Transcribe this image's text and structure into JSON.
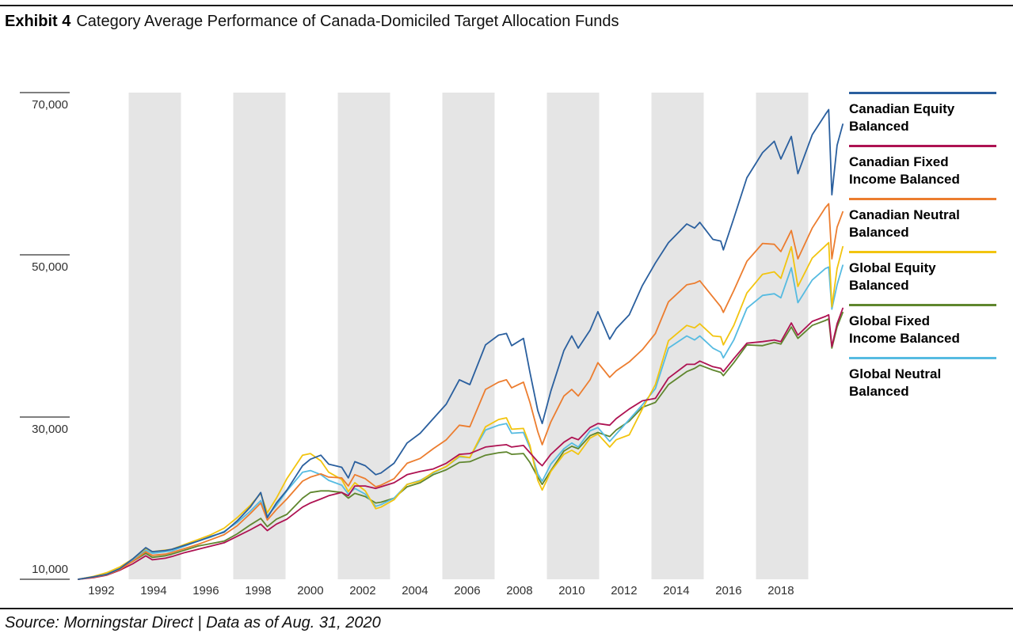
{
  "header": {
    "exhibit_label": "Exhibit 4",
    "title": "Category Average Performance of Canada-Domiciled Target Allocation Funds"
  },
  "footer": {
    "source": "Source: Morningstar Direct | Data as of Aug. 31, 2020"
  },
  "colors": {
    "band_gray": "#E5E5E5",
    "tick_gray": "#7F7F7F",
    "rule_black": "#1A1A1A"
  },
  "chart_data": {
    "type": "line",
    "title": "Category Average Performance of Canada-Domiciled Target Allocation Funds",
    "xlabel": "",
    "ylabel": "",
    "y_axis": {
      "ticks": [
        10000,
        30000,
        50000,
        70000
      ],
      "tick_labels": [
        "10,000",
        "30,000",
        "50,000",
        "70,000"
      ],
      "min": 10000,
      "max": 70000
    },
    "x_axis": {
      "tick_years": [
        1992,
        1994,
        1996,
        1998,
        2000,
        2002,
        2004,
        2006,
        2008,
        2010,
        2012,
        2014,
        2016,
        2018
      ],
      "start": 1991.42,
      "end": 2020.67
    },
    "shaded_bands": [
      [
        1993.35,
        1995.35
      ],
      [
        1997.35,
        1999.35
      ],
      [
        2001.35,
        2003.35
      ],
      [
        2005.35,
        2007.35
      ],
      [
        2009.35,
        2011.35
      ],
      [
        2013.35,
        2015.35
      ],
      [
        2017.35,
        2019.35
      ]
    ],
    "legend_position": "right",
    "grid": false,
    "x": [
      1991.42,
      1992.0,
      1992.5,
      1993.0,
      1993.5,
      1994.0,
      1994.25,
      1994.75,
      1995.0,
      1995.5,
      1996.0,
      1996.5,
      1997.0,
      1997.5,
      1998.0,
      1998.4,
      1998.65,
      1999.0,
      1999.4,
      2000.0,
      2000.3,
      2000.7,
      2001.0,
      2001.5,
      2001.75,
      2002.0,
      2002.4,
      2002.8,
      2003.0,
      2003.5,
      2004.0,
      2004.5,
      2005.0,
      2005.5,
      2006.0,
      2006.4,
      2007.0,
      2007.5,
      2007.8,
      2008.0,
      2008.45,
      2008.7,
      2009.0,
      2009.17,
      2009.5,
      2010.0,
      2010.3,
      2010.55,
      2011.0,
      2011.3,
      2011.75,
      2012.0,
      2012.5,
      2013.0,
      2013.5,
      2014.0,
      2014.7,
      2015.0,
      2015.2,
      2015.7,
      2016.0,
      2016.1,
      2016.5,
      2017.0,
      2017.6,
      2018.05,
      2018.3,
      2018.7,
      2018.95,
      2019.5,
      2020.0,
      2020.13,
      2020.25,
      2020.45,
      2020.67
    ],
    "series": [
      {
        "name": "Canadian Equity Balanced",
        "color": "#2A5F9E",
        "values": [
          10000,
          10300,
          10600,
          11300,
          12500,
          13900,
          13400,
          13550,
          13700,
          14200,
          14700,
          15300,
          15800,
          17200,
          18900,
          20700,
          17600,
          19400,
          21000,
          24000,
          24800,
          25300,
          24200,
          23800,
          22500,
          24500,
          24000,
          22900,
          23100,
          24300,
          26800,
          28000,
          29800,
          31600,
          34600,
          34000,
          38900,
          40100,
          40300,
          38800,
          39700,
          35500,
          30800,
          29200,
          33200,
          38200,
          40000,
          38500,
          40700,
          43000,
          39600,
          40900,
          42600,
          46200,
          49000,
          51500,
          53800,
          53300,
          54000,
          51900,
          51700,
          50600,
          54500,
          59500,
          62600,
          64000,
          61800,
          64600,
          60000,
          64800,
          67300,
          67900,
          57400,
          63500,
          66100
        ]
      },
      {
        "name": "Canadian Fixed Income Balanced",
        "color": "#AE1252",
        "values": [
          10000,
          10200,
          10500,
          11100,
          11900,
          12900,
          12400,
          12600,
          12800,
          13300,
          13700,
          14100,
          14500,
          15300,
          16100,
          16800,
          16000,
          16800,
          17400,
          18900,
          19400,
          19900,
          20300,
          20700,
          20300,
          21500,
          21500,
          21200,
          21400,
          21900,
          22900,
          23300,
          23600,
          24300,
          25400,
          25500,
          26300,
          26500,
          26600,
          26300,
          26500,
          25600,
          24500,
          24000,
          25400,
          26900,
          27500,
          27200,
          28700,
          29200,
          29000,
          29800,
          31000,
          32000,
          32300,
          34800,
          36500,
          36500,
          36900,
          36200,
          36000,
          35600,
          37200,
          39100,
          39300,
          39500,
          39300,
          41600,
          40100,
          41800,
          42400,
          42600,
          38700,
          41500,
          43400
        ]
      },
      {
        "name": "Canadian Neutral Balanced",
        "color": "#EC7D2F",
        "values": [
          10000,
          10250,
          10550,
          11200,
          12200,
          13400,
          12950,
          13100,
          13300,
          13800,
          14300,
          14900,
          15500,
          16600,
          18100,
          19400,
          17300,
          18600,
          19900,
          22100,
          22600,
          23000,
          22600,
          22500,
          21500,
          22900,
          22400,
          21400,
          21600,
          22400,
          24300,
          24900,
          26100,
          27200,
          29000,
          28800,
          33400,
          34300,
          34600,
          33600,
          34300,
          31800,
          28200,
          26600,
          29400,
          32600,
          33400,
          32600,
          34600,
          36700,
          34900,
          35700,
          36800,
          38300,
          40300,
          44200,
          46300,
          46500,
          46800,
          44800,
          43600,
          42900,
          45600,
          49200,
          51400,
          51300,
          50400,
          53000,
          49500,
          53300,
          55800,
          56300,
          49500,
          53400,
          55300
        ]
      },
      {
        "name": "Global Equity Balanced",
        "color": "#F2C40F",
        "values": [
          10000,
          10350,
          10800,
          11500,
          12500,
          13800,
          13400,
          13600,
          13700,
          14300,
          14900,
          15500,
          16300,
          17600,
          19100,
          20600,
          18200,
          20000,
          22400,
          25300,
          25500,
          24600,
          23200,
          22300,
          20800,
          21900,
          20900,
          18700,
          18900,
          19800,
          21700,
          22100,
          23200,
          23900,
          25200,
          25000,
          28800,
          29700,
          29900,
          28500,
          28600,
          26500,
          22200,
          21000,
          23300,
          25400,
          25900,
          25400,
          27400,
          27900,
          26300,
          27200,
          27800,
          31000,
          34000,
          39400,
          41300,
          41000,
          41500,
          40000,
          39900,
          38900,
          41300,
          45300,
          47600,
          47900,
          47100,
          51000,
          46100,
          49600,
          51100,
          51500,
          43600,
          48300,
          51000
        ]
      },
      {
        "name": "Global Fixed Income Balanced",
        "color": "#5F862E",
        "values": [
          10000,
          10300,
          10800,
          11300,
          12200,
          13200,
          12700,
          12900,
          13100,
          13600,
          14100,
          14400,
          14700,
          15600,
          16700,
          17500,
          16500,
          17400,
          18000,
          20000,
          20700,
          20900,
          20900,
          20700,
          20000,
          20600,
          20200,
          19400,
          19500,
          20000,
          21400,
          21900,
          22900,
          23500,
          24400,
          24500,
          25300,
          25600,
          25700,
          25400,
          25500,
          24400,
          22600,
          21700,
          23400,
          25800,
          26400,
          26100,
          27700,
          28100,
          27600,
          28400,
          29500,
          31200,
          31800,
          34000,
          35600,
          36000,
          36400,
          35800,
          35500,
          35100,
          36700,
          38900,
          38800,
          39200,
          39000,
          41100,
          39700,
          41300,
          41900,
          42100,
          38500,
          41100,
          42900
        ]
      },
      {
        "name": "Global Neutral Balanced",
        "color": "#56BBE1",
        "values": [
          10000,
          10300,
          10700,
          11400,
          12400,
          13600,
          13200,
          13400,
          13500,
          14100,
          14700,
          15200,
          15900,
          17000,
          18400,
          19700,
          17800,
          19100,
          20900,
          23200,
          23400,
          22900,
          22200,
          21600,
          20500,
          21200,
          20500,
          19000,
          19200,
          20000,
          21700,
          22200,
          23100,
          23900,
          25100,
          25000,
          28400,
          29000,
          29200,
          28000,
          28100,
          26200,
          23000,
          22100,
          24200,
          26100,
          26800,
          26300,
          28300,
          28700,
          27000,
          27900,
          29700,
          31500,
          33500,
          38500,
          40000,
          39500,
          40000,
          38500,
          38000,
          37300,
          39500,
          43400,
          45000,
          45200,
          44700,
          48400,
          44100,
          46900,
          48300,
          48500,
          43300,
          46300,
          48700
        ]
      }
    ]
  }
}
